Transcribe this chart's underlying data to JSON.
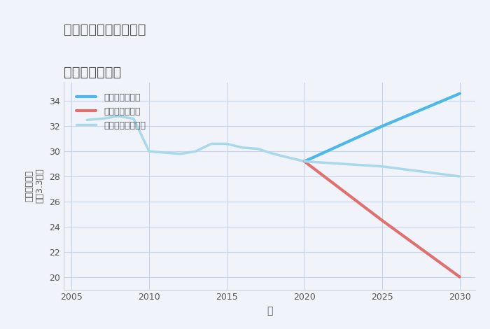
{
  "title_line1": "愛知県瀬戸市川北町の",
  "title_line2": "土地の価格推移",
  "xlabel": "年",
  "ylabel": "単価（万円）\n坪（3.3㎡）",
  "background_color": "#f0f4fa",
  "plot_bg_color": "#f0f4fa",
  "historical": {
    "years": [
      2006,
      2007,
      2008,
      2009,
      2010,
      2011,
      2012,
      2013,
      2014,
      2015,
      2016,
      2017,
      2018,
      2019,
      2020
    ],
    "values": [
      32.5,
      32.6,
      32.8,
      32.6,
      30.0,
      29.9,
      29.8,
      30.0,
      30.6,
      30.6,
      30.3,
      30.2,
      29.8,
      29.5,
      29.2
    ],
    "color": "#a8d8ea",
    "linewidth": 2.5
  },
  "good": {
    "years": [
      2020,
      2025,
      2030
    ],
    "values": [
      29.2,
      32.0,
      34.6
    ],
    "color": "#4db8e8",
    "linewidth": 3.0,
    "label": "グッドシナリオ"
  },
  "bad": {
    "years": [
      2020,
      2025,
      2030
    ],
    "values": [
      29.2,
      24.5,
      20.0
    ],
    "color": "#e07070",
    "linewidth": 3.0,
    "label": "バッドシナリオ"
  },
  "normal_future": {
    "years": [
      2020,
      2025,
      2030
    ],
    "values": [
      29.2,
      28.8,
      28.0
    ],
    "color": "#a8d8ea",
    "linewidth": 2.5,
    "label": "ノーマルシナリオ"
  },
  "ylim": [
    19,
    35.5
  ],
  "xlim": [
    2004.5,
    2031
  ],
  "yticks": [
    20,
    22,
    24,
    26,
    28,
    30,
    32,
    34
  ],
  "xticks": [
    2005,
    2010,
    2015,
    2020,
    2025,
    2030
  ],
  "grid_color": "#c8d4ee",
  "title_color": "#555555",
  "tick_color": "#555555",
  "label_color": "#555555",
  "legend_color": "#555555"
}
